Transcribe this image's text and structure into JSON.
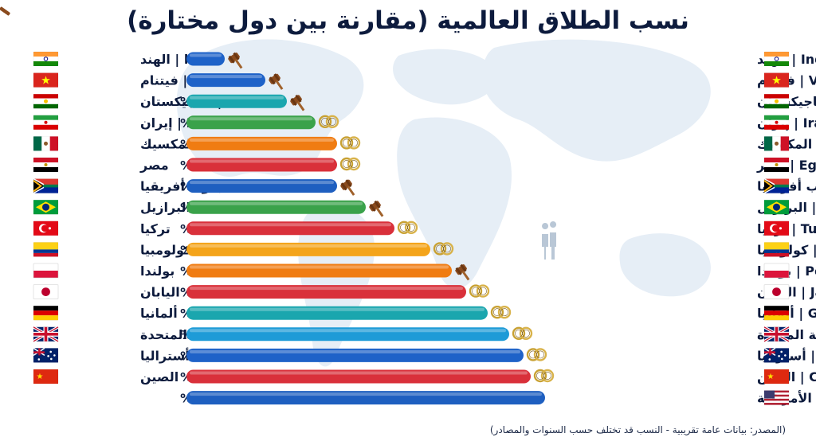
{
  "title": "نسب الطلاق العالمية (مقارنة بين دول مختارة)",
  "source_note": "(المصدر: بيانات عامة تقريبية - النسب قد تختلف حسب السنوات والمصادر)",
  "chart_data": {
    "type": "bar",
    "orientation": "horizontal",
    "title": "نسب الطلاق العالمية (مقارنة بين دول مختارة)",
    "grid": false,
    "unit": "%",
    "rows": [
      {
        "left_label": "ا | الهند",
        "pct_label": "%1",
        "value": 1,
        "right_label": "India | الهند",
        "flag": "india",
        "icon": "gavel",
        "color": "#1e62c8"
      },
      {
        "left_label": "V | فيتنام",
        "pct_label": "%7",
        "value": 7,
        "right_label": "Vietnam | فيتنام",
        "flag": "vietnam",
        "icon": "gavel",
        "color": "#1e62c8"
      },
      {
        "left_label": "Ta | طاجيكستان",
        "pct_label": "%10",
        "value": 10,
        "right_label": "Tajikistan | طاجيكستان",
        "flag": "tajikistan",
        "icon": "gavel",
        "color": "#1aa6ae"
      },
      {
        "left_label": "Iran | إيران",
        "pct_label": "%14",
        "value": 14,
        "right_label": "Iran | إيران",
        "flag": "iran",
        "icon": "rings",
        "color": "#3aa24a"
      },
      {
        "left_label": "المكسيك",
        "pct_label": "%17",
        "value": 17,
        "right_label": "Mexico | المكسيك",
        "flag": "mexico",
        "icon": "rings",
        "color": "#f07c12"
      },
      {
        "left_label": "مصر",
        "pct_label": "%17",
        "value": 17,
        "right_label": "Egypt | مصر",
        "flag": "egypt",
        "icon": "rings",
        "color": "#d9303a"
      },
      {
        "left_label": "جنوب أفريقيا",
        "pct_label": "%17",
        "value": 17,
        "right_label": "South Africa | جنوب أفريقيا",
        "flag": "south-africa",
        "icon": "gavel",
        "color": "#1e5fc0"
      },
      {
        "left_label": "البرازيل",
        "pct_label": "%21",
        "value": 21,
        "right_label": "Brazil | البرازيل",
        "flag": "brazil",
        "icon": "gavel",
        "color": "#3aa24a"
      },
      {
        "left_label": "تركيا",
        "pct_label": "%25",
        "value": 25,
        "right_label": "Turkey | تركيا",
        "flag": "turkey",
        "icon": "rings",
        "color": "#d9303a"
      },
      {
        "left_label": "كولومبيا",
        "pct_label": "%30",
        "value": 30,
        "right_label": "Colombia | كولومبيا",
        "flag": "colombia",
        "icon": "rings",
        "color": "#f4a41a"
      },
      {
        "left_label": "بولندا",
        "pct_label": "%33",
        "value": 33,
        "right_label": "Poland | بولندا",
        "flag": "poland",
        "icon": "gavel",
        "color": "#f07c12"
      },
      {
        "left_label": "اليابان",
        "pct_label": "%35",
        "value": 35,
        "right_label": "Japan | اليابان",
        "flag": "japan",
        "icon": "rings",
        "color": "#d9303a"
      },
      {
        "left_label": "ألمانيا",
        "pct_label": "%38",
        "value": 38,
        "right_label": "Germany | ألمانيا",
        "flag": "germany",
        "icon": "rings",
        "color": "#1aa6ae"
      },
      {
        "left_label": "المملكة المتحدة",
        "pct_label": "%41",
        "value": 41,
        "right_label": "UK | المملكة المتحدة",
        "flag": "uk",
        "icon": "rings",
        "color": "#1e9bd7"
      },
      {
        "left_label": "أستراليا",
        "pct_label": "%43",
        "value": 43,
        "right_label": "Australia | أستراليا",
        "flag": "australia",
        "icon": "rings",
        "color": "#1e62c8"
      },
      {
        "left_label": "الصين",
        "pct_label": "%44",
        "value": 44,
        "right_label": "China | الصين",
        "flag": "china",
        "icon": "rings",
        "color": "#d9303a"
      },
      {
        "left_label": "",
        "pct_label": "%46",
        "value": 46,
        "right_label": "USA | الولايات المتحدة الأمريكية",
        "flag": "usa",
        "icon": "",
        "color": "#1e5fc0"
      }
    ]
  }
}
